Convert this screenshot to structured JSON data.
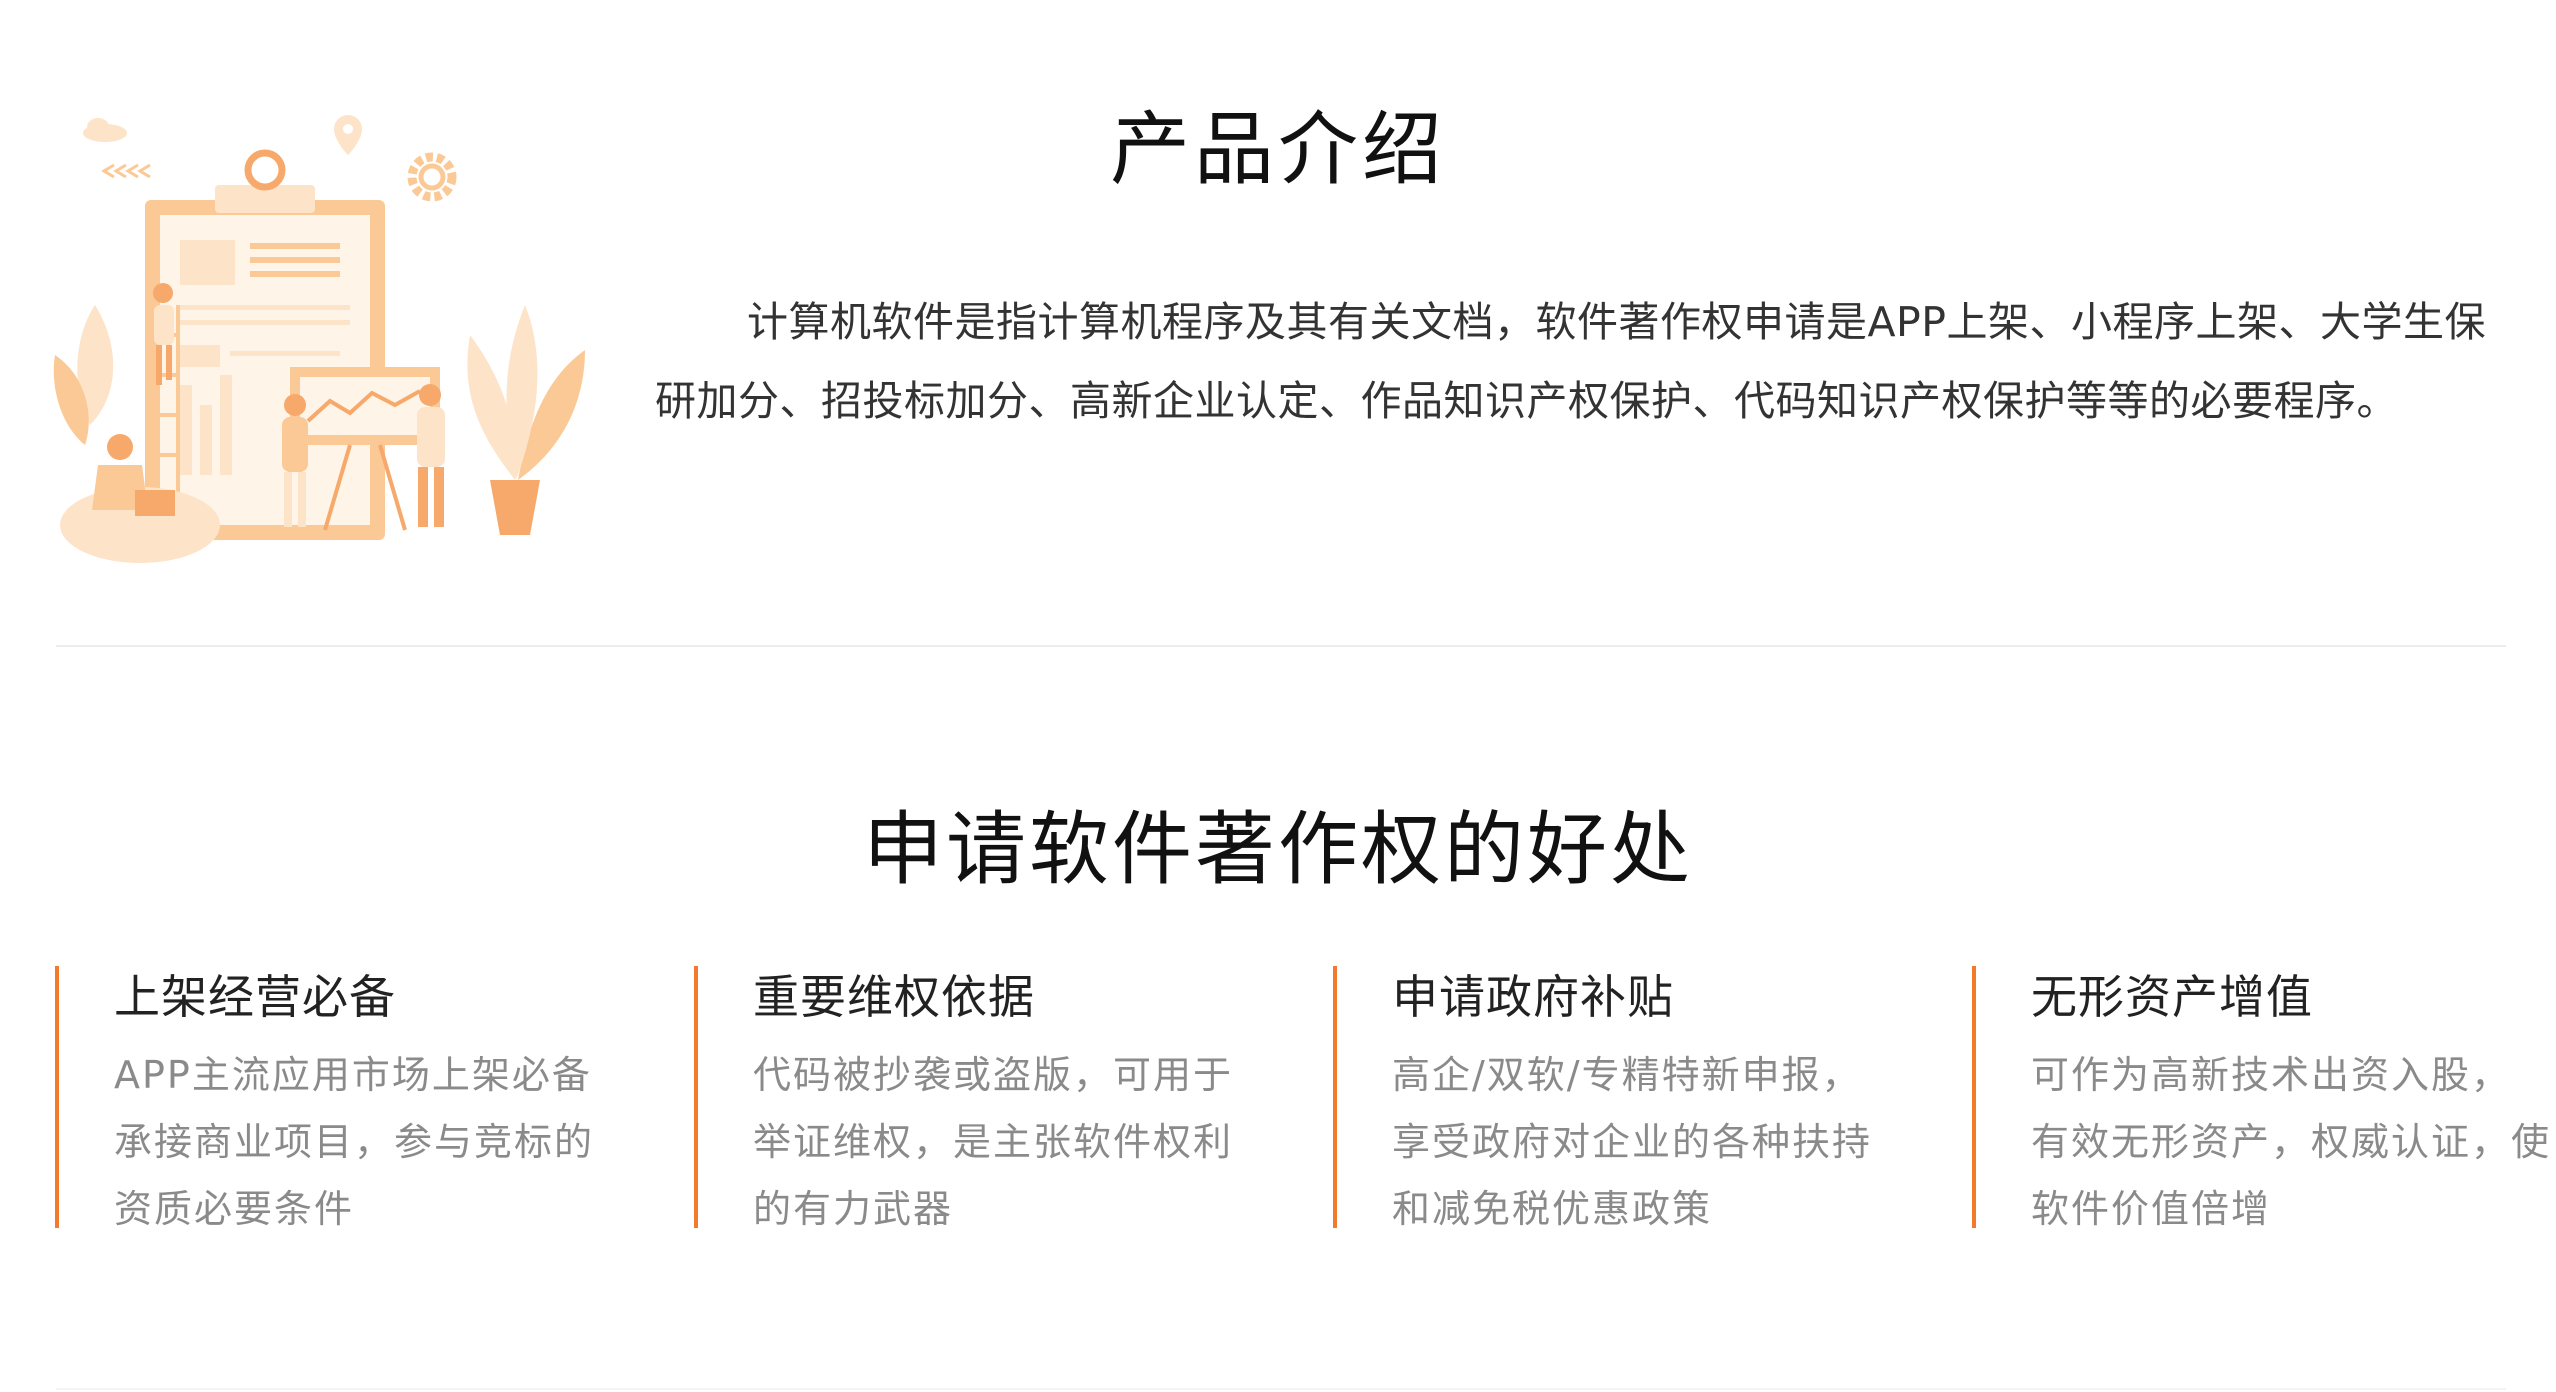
{
  "intro": {
    "title": "产品介绍",
    "text": "计算机软件是指计算机程序及其有关文档，软件著作权申请是APP上架、小程序上架、大学生保研加分、招投标加分、高新企业认定、作品知识产权保护、代码知识产权保护等等的必要程序。"
  },
  "benefits": {
    "title": "申请软件著作权的好处",
    "items": [
      {
        "title": "上架经营必备",
        "lines": [
          "APP主流应用市场上架必备",
          "承接商业项目，参与竞标的",
          "资质必要条件"
        ]
      },
      {
        "title": "重要维权依据",
        "lines": [
          "代码被抄袭或盗版，可用于",
          "举证维权，是主张软件权利",
          "的有力武器"
        ]
      },
      {
        "title": "申请政府补贴",
        "lines": [
          "高企/双软/专精特新申报，",
          "享受政府对企业的各种扶持",
          "和减免税优惠政策"
        ]
      },
      {
        "title": "无形资产增值",
        "lines": [
          "可作为高新技术出资入股，",
          "有效无形资产，权威认证，使",
          "软件价值倍增"
        ]
      }
    ]
  },
  "colors": {
    "accent": "#f27a2a",
    "illustration_light": "#fde3c8",
    "illustration_mid": "#fbc995",
    "illustration_dark": "#f6a96a"
  }
}
